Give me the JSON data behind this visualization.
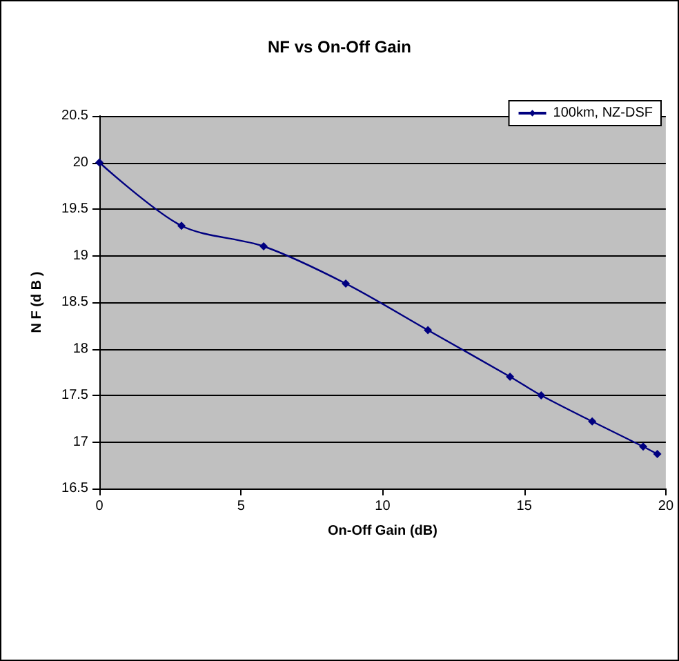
{
  "chart_data": {
    "type": "line",
    "title": "NF vs On-Off Gain",
    "xlabel": "On-Off Gain (dB)",
    "ylabel": "N F (d B )",
    "x": [
      0,
      2.9,
      5.8,
      8.7,
      11.6,
      14.5,
      15.6,
      17.4,
      19.2,
      19.7
    ],
    "series": [
      {
        "name": "100km, NZ-DSF",
        "color": "#000080",
        "values": [
          20.0,
          19.32,
          19.1,
          18.7,
          18.2,
          17.7,
          17.5,
          17.22,
          16.95,
          16.87
        ]
      }
    ],
    "xlim": [
      0,
      20
    ],
    "xticks": [
      0,
      5,
      10,
      15,
      20
    ],
    "ylim": [
      16.5,
      20.5
    ],
    "yticks": [
      16.5,
      17,
      17.5,
      18,
      18.5,
      19,
      19.5,
      20,
      20.5
    ],
    "grid": "y",
    "legend": "top right",
    "marker": "diamond",
    "line_style": "solid"
  }
}
